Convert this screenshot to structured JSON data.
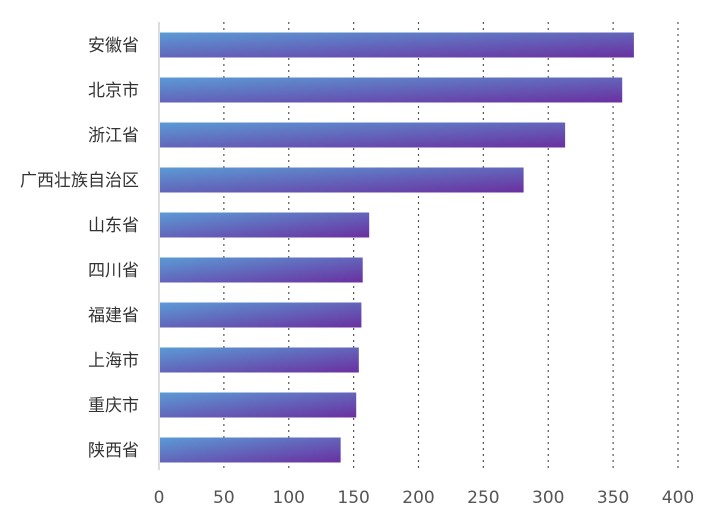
{
  "chart_data": {
    "type": "bar",
    "orientation": "horizontal",
    "categories": [
      "安徽省",
      "北京市",
      "浙江省",
      "广西壮族自治区",
      "山东省",
      "四川省",
      "福建省",
      "上海市",
      "重庆市",
      "陕西省"
    ],
    "values": [
      366,
      357,
      313,
      281,
      162,
      157,
      156,
      154,
      152,
      140
    ],
    "xlim": [
      0,
      400
    ],
    "xticks": [
      0,
      50,
      100,
      150,
      200,
      250,
      300,
      350,
      400
    ],
    "grid": "vertical-dotted",
    "title": "",
    "xlabel": "",
    "ylabel": "",
    "colors": {
      "bar_gradient_start": "#5b9bd5",
      "bar_gradient_end": "#6a2fa0",
      "grid": "#555555",
      "axis": "#bbbbbb",
      "label_text": "#333333",
      "tick_text": "#555555"
    }
  }
}
